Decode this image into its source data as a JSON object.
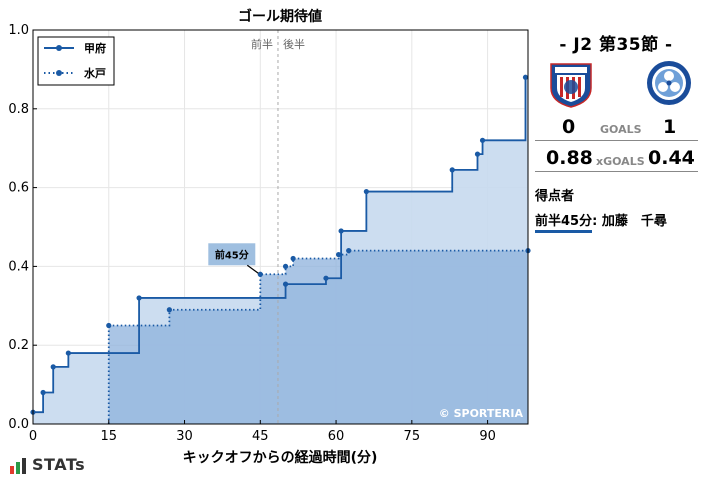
{
  "chart_data": {
    "type": "line",
    "step": true,
    "title": "ゴール期待値",
    "xlabel": "キックオフからの経過時間(分)",
    "ylabel": "",
    "xlim": [
      0,
      98
    ],
    "ylim": [
      0,
      1.0
    ],
    "xticks": [
      0,
      15,
      30,
      45,
      60,
      75,
      90
    ],
    "yticks": [
      0.0,
      0.2,
      0.4,
      0.6,
      0.8,
      1.0
    ],
    "grid": true,
    "half_time_marker": {
      "x": 48.5,
      "label_first": "前半",
      "label_second": "後半"
    },
    "legend": {
      "placement": "top-left"
    },
    "series": [
      {
        "name": "甲府",
        "style": "solid",
        "color": "#1a5aa5",
        "points": [
          [
            0,
            0.03
          ],
          [
            2,
            0.08
          ],
          [
            4,
            0.145
          ],
          [
            7,
            0.18
          ],
          [
            21,
            0.32
          ],
          [
            50,
            0.355
          ],
          [
            58,
            0.37
          ],
          [
            61,
            0.49
          ],
          [
            66,
            0.59
          ],
          [
            83,
            0.645
          ],
          [
            88,
            0.685
          ],
          [
            89,
            0.72
          ],
          [
            97.5,
            0.88
          ]
        ],
        "end_x": 98
      },
      {
        "name": "水戸",
        "style": "dotted",
        "color": "#1a5aa5",
        "points": [
          [
            15,
            0.25
          ],
          [
            27,
            0.29
          ],
          [
            45,
            0.38
          ],
          [
            50,
            0.4
          ],
          [
            51.5,
            0.42
          ],
          [
            60.5,
            0.43
          ],
          [
            62.5,
            0.44
          ],
          [
            98,
            0.44
          ]
        ],
        "end_x": 98
      }
    ],
    "annotations": [
      {
        "text": "前45分",
        "x": 45,
        "y": 0.38
      }
    ],
    "watermark": "© SPORTERIA"
  },
  "match": {
    "title": "-  J2 第35節  -",
    "home": {
      "name": "甲府",
      "crest": "ventforet-kofu-crest",
      "goals": "0",
      "xg": "0.88"
    },
    "away": {
      "name": "水戸",
      "crest": "mito-hollyhock-crest",
      "goals": "1",
      "xg": "0.44"
    },
    "goals_label": "GOALS",
    "xgoals_label": "xGOALS",
    "scorers_title": "得点者",
    "scorers": [
      {
        "time": "前半45分",
        "text": ": 加藤　千尋"
      }
    ]
  },
  "branding": {
    "logo_text": "STATs",
    "logo_colors": [
      "#e23a2e",
      "#2b9a48",
      "#333333"
    ]
  }
}
